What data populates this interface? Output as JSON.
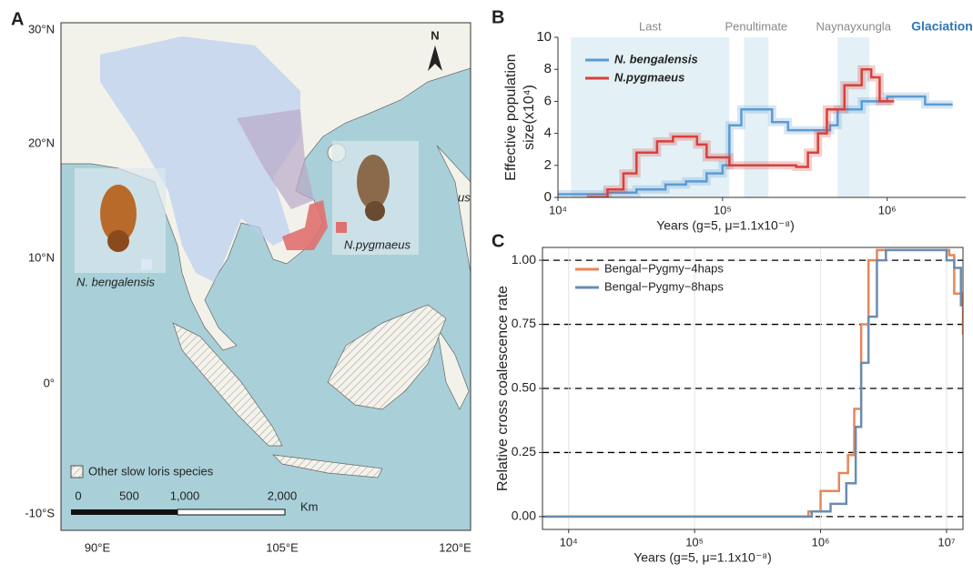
{
  "map": {
    "label": "A",
    "lat_labels": [
      "30°N",
      "20°N",
      "10°N",
      "0°",
      "-10°S"
    ],
    "lon_labels": [
      "90°E",
      "105°E",
      "120°E"
    ],
    "north": "N",
    "cut_text": "us",
    "species": [
      "N. bengalensis",
      "N.pygmaeus"
    ],
    "legend": "Other slow loris species",
    "scale_labels": [
      "0",
      "500",
      "1,000",
      "2,000"
    ],
    "scale_unit": "Km"
  },
  "chart_data": [
    {
      "type": "line",
      "label": "B",
      "step": true,
      "log_x": true,
      "band_title": "Glaciation",
      "bands": [
        {
          "label": "Last",
          "x": [
            12000,
            110000
          ]
        },
        {
          "label": "Penultimate",
          "x": [
            135000,
            190000
          ]
        },
        {
          "label": "Naynayxungla",
          "x": [
            500000,
            780000
          ]
        }
      ],
      "xlabel": "Years (g=5, μ=1.1x10⁻⁸)",
      "ylabel": [
        "Effective population",
        "size(x10⁴)"
      ],
      "xlim": [
        10000,
        3000000
      ],
      "xticks": [
        {
          "value": 10000,
          "label": "10⁴"
        },
        {
          "value": 100000,
          "label": "10⁵"
        },
        {
          "value": 1000000,
          "label": "10⁶"
        }
      ],
      "ylim": [
        0,
        10
      ],
      "yticks": [
        0,
        2,
        4,
        6,
        8,
        10
      ],
      "grid": false,
      "frame": false,
      "legend": "upper left",
      "series": [
        {
          "name": "N. bengalensis",
          "color": "#5b9bd5",
          "x": [
            10000,
            20000,
            30000,
            45000,
            60000,
            80000,
            100000,
            110000,
            130000,
            200000,
            250000,
            300000,
            450000,
            500000,
            700000,
            1000000,
            1700000,
            2500000
          ],
          "values": [
            0.2,
            0.3,
            0.5,
            0.8,
            1.0,
            1.5,
            2.0,
            4.5,
            5.5,
            4.7,
            4.2,
            4.2,
            4.5,
            5.5,
            6.0,
            6.3,
            5.8,
            5.8
          ]
        },
        {
          "name": "N.pygmaeus",
          "color": "#d9403a",
          "x": [
            15000,
            20000,
            25000,
            30000,
            40000,
            50000,
            70000,
            80000,
            110000,
            280000,
            330000,
            380000,
            430000,
            550000,
            700000,
            800000,
            900000,
            1100000
          ],
          "values": [
            0,
            0.5,
            1.5,
            2.8,
            3.5,
            3.8,
            3.3,
            2.5,
            2.0,
            1.9,
            2.8,
            4.0,
            5.5,
            7.0,
            8.0,
            7.5,
            6.0,
            6.0
          ]
        }
      ]
    },
    {
      "type": "line",
      "label": "C",
      "step": true,
      "log_x": true,
      "xlabel": "Years (g=5, μ=1.1x10⁻⁸)",
      "ylabel": [
        "Relative cross coalescence rate"
      ],
      "xlim": [
        6200,
        13500000
      ],
      "xticks": [
        {
          "value": 10000,
          "label": "10⁴"
        },
        {
          "value": 100000,
          "label": "10⁵"
        },
        {
          "value": 1000000,
          "label": "10⁶"
        },
        {
          "value": 10000000,
          "label": "10⁷"
        }
      ],
      "ylim": [
        -0.05,
        1.05
      ],
      "yticks": [
        {
          "value": 0,
          "label": "0.00"
        },
        {
          "value": 0.25,
          "label": "0.25"
        },
        {
          "value": 0.5,
          "label": "0.50"
        },
        {
          "value": 0.75,
          "label": "0.75"
        },
        {
          "value": 1,
          "label": "1.00"
        }
      ],
      "grid": true,
      "frame": true,
      "dashed_ylines": true,
      "legend": "upper left",
      "series": [
        {
          "name": "Bengal−Pygmy−4haps",
          "color": "#e8865a",
          "x": [
            6500,
            800000,
            1000000,
            1400000,
            1650000,
            1850000,
            2100000,
            2400000,
            2800000,
            10500000,
            11500000,
            13500000
          ],
          "values": [
            0,
            0.02,
            0.1,
            0.17,
            0.24,
            0.42,
            0.75,
            1.0,
            1.04,
            1.02,
            0.87,
            0.71
          ]
        },
        {
          "name": "Bengal−Pygmy−8haps",
          "color": "#6a8caf",
          "x": [
            6500,
            850000,
            1200000,
            1600000,
            1900000,
            2100000,
            2400000,
            2800000,
            3300000,
            10000000,
            11500000,
            13000000
          ],
          "values": [
            0,
            0.02,
            0.05,
            0.13,
            0.35,
            0.6,
            0.78,
            1.0,
            1.04,
            1.0,
            0.97,
            0.82
          ]
        }
      ]
    }
  ]
}
